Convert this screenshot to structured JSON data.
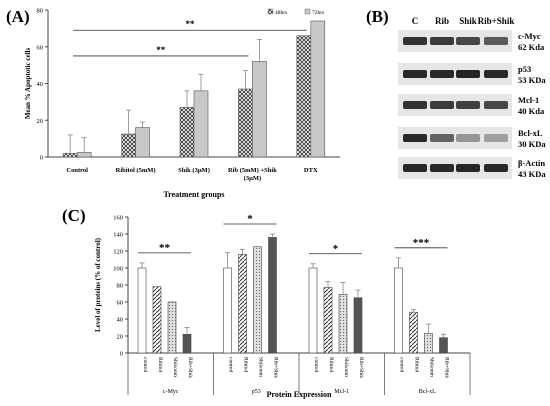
{
  "panel_labels": {
    "a": "(A)",
    "b": "(B)",
    "c": "(C)"
  },
  "colors": {
    "bar_fill": "#c8c8c8",
    "bar_stroke": "#555555",
    "pattern": "#333333",
    "band_bg": "#e6e6e6",
    "band_dark": "#1a1a1a"
  },
  "chart_data": [
    {
      "type": "bar",
      "panel": "A",
      "ylabel": "Mean % Apoptotic cells",
      "xlabel": "Treatment groups",
      "ylim": [
        0,
        80
      ],
      "yticks": [
        0,
        20,
        40,
        60,
        80
      ],
      "categories": [
        "Control",
        "Ribitol (5mM)",
        "Shik (3µM)",
        "Rib (5mM) +Shik",
        "DTX"
      ],
      "category_line2": [
        "",
        "",
        "",
        "(3µM)",
        ""
      ],
      "series": [
        {
          "name": "48hrs",
          "values": [
            2,
            12.5,
            27,
            37,
            66
          ],
          "errors": [
            10,
            13,
            9,
            10,
            0
          ],
          "pattern": "hatch-cross"
        },
        {
          "name": "72hrs",
          "values": [
            2.5,
            16,
            36,
            52,
            74
          ],
          "errors": [
            8,
            3,
            9,
            12,
            0
          ],
          "pattern": "solid-light"
        }
      ],
      "significance": [
        {
          "label": "**",
          "from": 0,
          "to": 4
        },
        {
          "label": "**",
          "from": 0,
          "to": 3
        }
      ],
      "legend_position": "top-right",
      "grid": false
    },
    {
      "type": "bar",
      "panel": "C",
      "ylabel": "Level of proteins (% of control)",
      "xlabel": "Protein Expression",
      "ylim": [
        0,
        160
      ],
      "yticks": [
        0,
        20,
        40,
        60,
        80,
        100,
        120,
        140,
        160
      ],
      "groups": [
        {
          "name": "c-Myc",
          "sig": "**",
          "bars": [
            {
              "label": "control",
              "value": 100,
              "error": 6,
              "pattern": "white"
            },
            {
              "label": "Ribitol",
              "value": 78,
              "error": 0,
              "pattern": "diag"
            },
            {
              "label": "Shikonin",
              "value": 60,
              "error": 0,
              "pattern": "dots"
            },
            {
              "label": "Rib+Shik",
              "value": 22,
              "error": 8,
              "pattern": "dark"
            }
          ]
        },
        {
          "name": "p53",
          "sig": "*",
          "bars": [
            {
              "label": "control",
              "value": 100,
              "error": 18,
              "pattern": "white"
            },
            {
              "label": "Ribitol",
              "value": 116,
              "error": 6,
              "pattern": "diag"
            },
            {
              "label": "Shikonin",
              "value": 125,
              "error": 0,
              "pattern": "dots"
            },
            {
              "label": "Rib+Shik",
              "value": 136,
              "error": 4,
              "pattern": "dark"
            }
          ]
        },
        {
          "name": "Mcl-1",
          "sig": "*",
          "bars": [
            {
              "label": "control",
              "value": 100,
              "error": 5,
              "pattern": "white"
            },
            {
              "label": "Ribitol",
              "value": 77,
              "error": 7,
              "pattern": "diag"
            },
            {
              "label": "Shikonin",
              "value": 69,
              "error": 14,
              "pattern": "dots"
            },
            {
              "label": "Rib+Shik",
              "value": 65,
              "error": 9,
              "pattern": "dark"
            }
          ]
        },
        {
          "name": "Bcl-xL",
          "sig": "***",
          "bars": [
            {
              "label": "control",
              "value": 100,
              "error": 12,
              "pattern": "white"
            },
            {
              "label": "Ribitol",
              "value": 48,
              "error": 3,
              "pattern": "diag"
            },
            {
              "label": "Shikonin",
              "value": 23,
              "error": 11,
              "pattern": "dots"
            },
            {
              "label": "Rib+Shik",
              "value": 18,
              "error": 4,
              "pattern": "dark"
            }
          ]
        }
      ],
      "grid": false
    }
  ],
  "blot": {
    "columns": [
      "C",
      "Rib",
      "Shik",
      "Rib+Shik"
    ],
    "rows": [
      {
        "name": "c-Myc",
        "size": "62 Kda",
        "intensity": [
          0.85,
          0.8,
          0.75,
          0.65
        ]
      },
      {
        "name": "p53",
        "size": "53 KDa",
        "intensity": [
          0.9,
          0.9,
          0.92,
          0.9
        ]
      },
      {
        "name": "Mcl-1",
        "size": "40 Kda",
        "intensity": [
          0.85,
          0.8,
          0.78,
          0.75
        ]
      },
      {
        "name": "Bcl-xL",
        "size": "30 KDa",
        "intensity": [
          0.9,
          0.6,
          0.35,
          0.3
        ]
      },
      {
        "name": "β-Actin",
        "size": "43 KDa",
        "intensity": [
          0.9,
          0.9,
          0.9,
          0.9
        ]
      }
    ]
  }
}
